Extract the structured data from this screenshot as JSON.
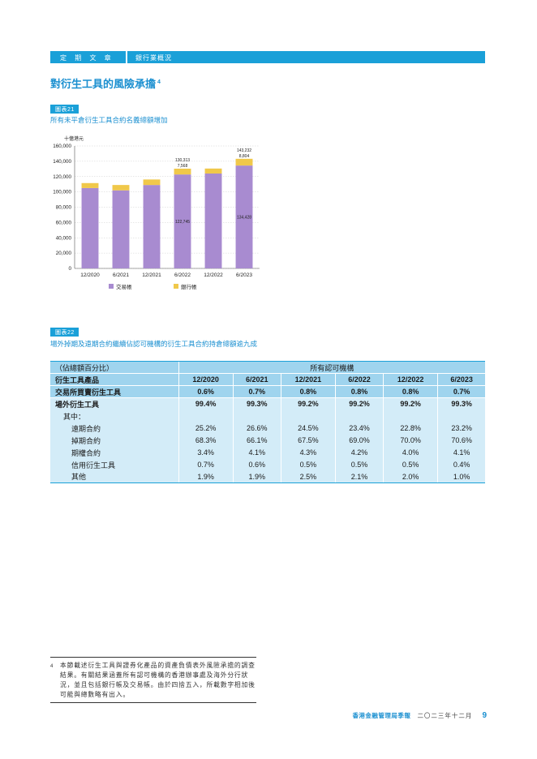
{
  "header": {
    "section": "定 期 文 章",
    "article": "銀行業概況"
  },
  "title": {
    "text": "對衍生工具的風險承擔",
    "footnote_ref": "4"
  },
  "chart_caption": {
    "tag": "圖表21",
    "text": "所有未平倉衍生工具合約名義總額增加"
  },
  "chart_data": {
    "type": "bar",
    "stacked": true,
    "ylabel": "十億港元",
    "ylim": [
      0,
      160000
    ],
    "yticks": [
      "0",
      "20,000",
      "40,000",
      "60,000",
      "80,000",
      "100,000",
      "120,000",
      "140,000",
      "160,000"
    ],
    "categories": [
      "12/2020",
      "6/2021",
      "12/2021",
      "6/2022",
      "12/2022",
      "6/2023"
    ],
    "series": [
      {
        "name": "交易帳",
        "color": "#a88bd0",
        "values": [
          105000,
          102000,
          109000,
          122745,
          124000,
          134428
        ]
      },
      {
        "name": "銀行帳",
        "color": "#f0c84a",
        "values": [
          6500,
          7000,
          7200,
          7568,
          6500,
          8804
        ]
      }
    ],
    "data_labels": [
      {
        "index": 3,
        "total": "130,313",
        "top": "7,568",
        "bottom": "122,745"
      },
      {
        "index": 5,
        "total": "143,232",
        "top": "8,804",
        "bottom": "134,428"
      }
    ],
    "legend": "bottom"
  },
  "table_caption": {
    "tag": "圖表22",
    "text": "場外掉期及遠期合約繼續佔認可機構的衍生工具合約持倉總額逾九成"
  },
  "table": {
    "unit": "（佔總額百分比）",
    "group_header": "所有認可機構",
    "product_header": "衍生工具產品",
    "periods": [
      "12/2020",
      "6/2021",
      "12/2021",
      "6/2022",
      "12/2022",
      "6/2023"
    ],
    "exchange": {
      "label": "交易所買賣衍生工具",
      "values": [
        "0.6%",
        "0.7%",
        "0.8%",
        "0.8%",
        "0.8%",
        "0.7%"
      ]
    },
    "otc": {
      "label": "場外衍生工具",
      "values": [
        "99.4%",
        "99.3%",
        "99.2%",
        "99.2%",
        "99.2%",
        "99.3%"
      ]
    },
    "of_which": "其中：",
    "rows": [
      {
        "label": "遠期合約",
        "values": [
          "25.2%",
          "26.6%",
          "24.5%",
          "23.4%",
          "22.8%",
          "23.2%"
        ]
      },
      {
        "label": "掉期合約",
        "values": [
          "68.3%",
          "66.1%",
          "67.5%",
          "69.0%",
          "70.0%",
          "70.6%"
        ]
      },
      {
        "label": "期權合約",
        "values": [
          "3.4%",
          "4.1%",
          "4.3%",
          "4.2%",
          "4.0%",
          "4.1%"
        ]
      },
      {
        "label": "信用衍生工具",
        "values": [
          "0.7%",
          "0.6%",
          "0.5%",
          "0.5%",
          "0.5%",
          "0.4%"
        ]
      },
      {
        "label": "其他",
        "values": [
          "1.9%",
          "1.9%",
          "2.5%",
          "2.1%",
          "2.0%",
          "1.0%"
        ]
      }
    ]
  },
  "footnote": {
    "mark": "4",
    "text": "本節載述衍生工具與證券化產品的資產負債表外風險承擔的調查結果。有關結果涵蓋所有認可機構的香港辦事處及海外分行狀況，並且包括銀行帳及交易帳。由於四捨五入，所載數字相加後可能與總數略有出入。"
  },
  "footer": {
    "publication": "香港金融管理局季報",
    "date": "二〇二三年十二月",
    "page": "9"
  }
}
